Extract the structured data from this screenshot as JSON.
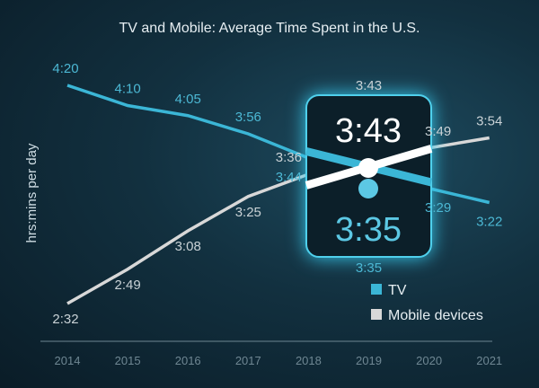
{
  "chart_data": {
    "type": "line",
    "title": "TV and Mobile: Average Time Spent in the U.S.",
    "ylabel": "hrs:mins per day",
    "xlabel": "",
    "x": [
      "2014",
      "2015",
      "2016",
      "2017",
      "2018",
      "2019",
      "2020",
      "2021"
    ],
    "series": [
      {
        "name": "TV",
        "color": "#3bb6d6",
        "values": [
          "4:20",
          "4:10",
          "4:05",
          "3:56",
          "3:44",
          "3:35",
          "3:29",
          "3:22"
        ]
      },
      {
        "name": "Mobile devices",
        "color": "#d8d8d8",
        "values": [
          "2:32",
          "2:49",
          "3:08",
          "3:25",
          "3:36",
          "3:43",
          "3:49",
          "3:54"
        ]
      }
    ],
    "highlight": {
      "year": "2019",
      "top": "3:43",
      "bottom": "3:35"
    },
    "legend": "bottom-right",
    "grid": false
  }
}
